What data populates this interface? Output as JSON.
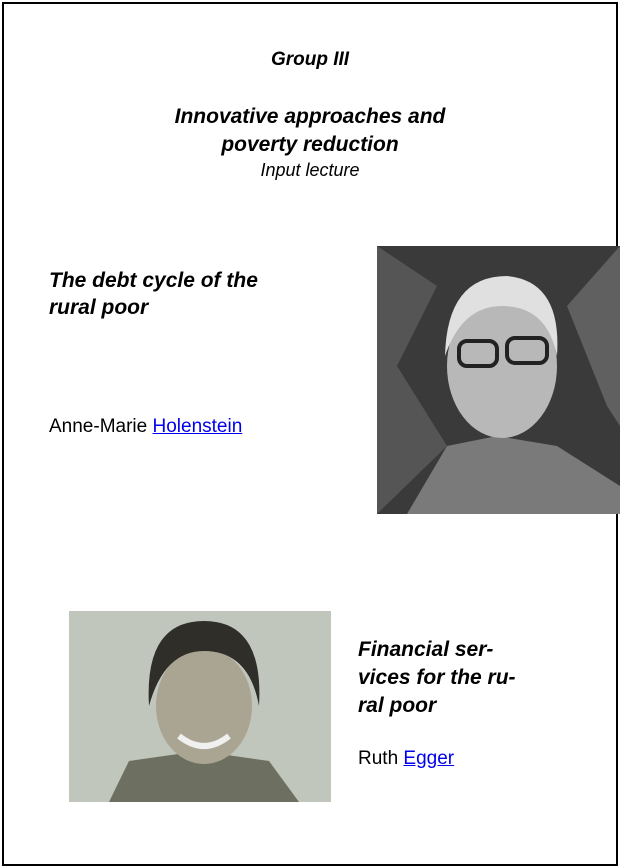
{
  "header": {
    "group": "Group III",
    "title_lines": [
      "Innovative approaches and",
      "poverty reduction"
    ],
    "subtitle": "Input lecture"
  },
  "lectures": [
    {
      "title_lines": [
        "The debt cycle of the",
        "rural poor"
      ],
      "speaker_first": "Anne-Marie",
      "speaker_link": "Holenstein"
    },
    {
      "title_lines": [
        "Financial ser-",
        "vices for the ru-",
        "ral poor"
      ],
      "speaker_first": "Ruth",
      "speaker_link": "Egger"
    }
  ]
}
